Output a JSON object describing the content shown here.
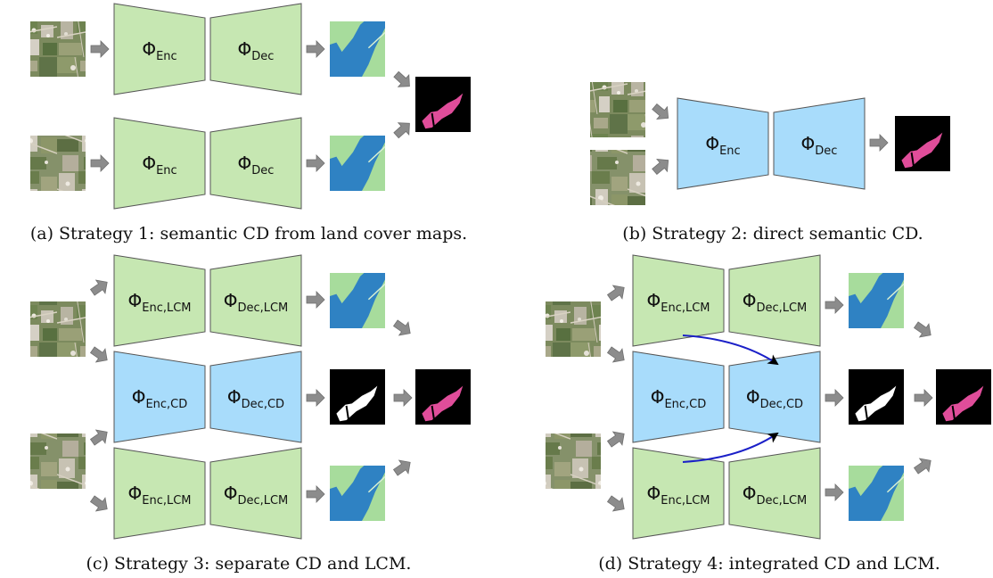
{
  "symbol": "Φ",
  "labels": {
    "enc": "Enc",
    "dec": "Dec",
    "enc_lcm": "Enc,LCM",
    "dec_lcm": "Dec,LCM",
    "enc_cd": "Enc,CD",
    "dec_cd": "Dec,CD"
  },
  "captions": {
    "a": "(a) Strategy 1: semantic CD from land cover maps.",
    "b": "(b) Strategy 2: direct semantic CD.",
    "c": "(c) Strategy 3: separate CD and LCM.",
    "d": "(d) Strategy 4: integrated CD and LCM."
  },
  "colors": {
    "lcm_block": "#c6e7b2",
    "cd_block": "#a8dcfb",
    "water": "#2f82c3",
    "land": "#a7dc9c",
    "change": "#e04d9a",
    "arrow": "#8c8c8c",
    "skip_arrow": "#1b20c8"
  }
}
